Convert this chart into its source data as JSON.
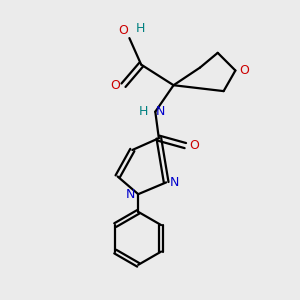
{
  "bg_color": "#ebebeb",
  "bond_color": "#000000",
  "bond_width": 1.6,
  "atoms": {
    "N_blue": "#0000cc",
    "O_red": "#cc0000",
    "teal": "#008080",
    "black": "#000000"
  },
  "figsize": [
    3.0,
    3.0
  ],
  "dpi": 100,
  "xlim": [
    0,
    10
  ],
  "ylim": [
    0,
    10
  ]
}
